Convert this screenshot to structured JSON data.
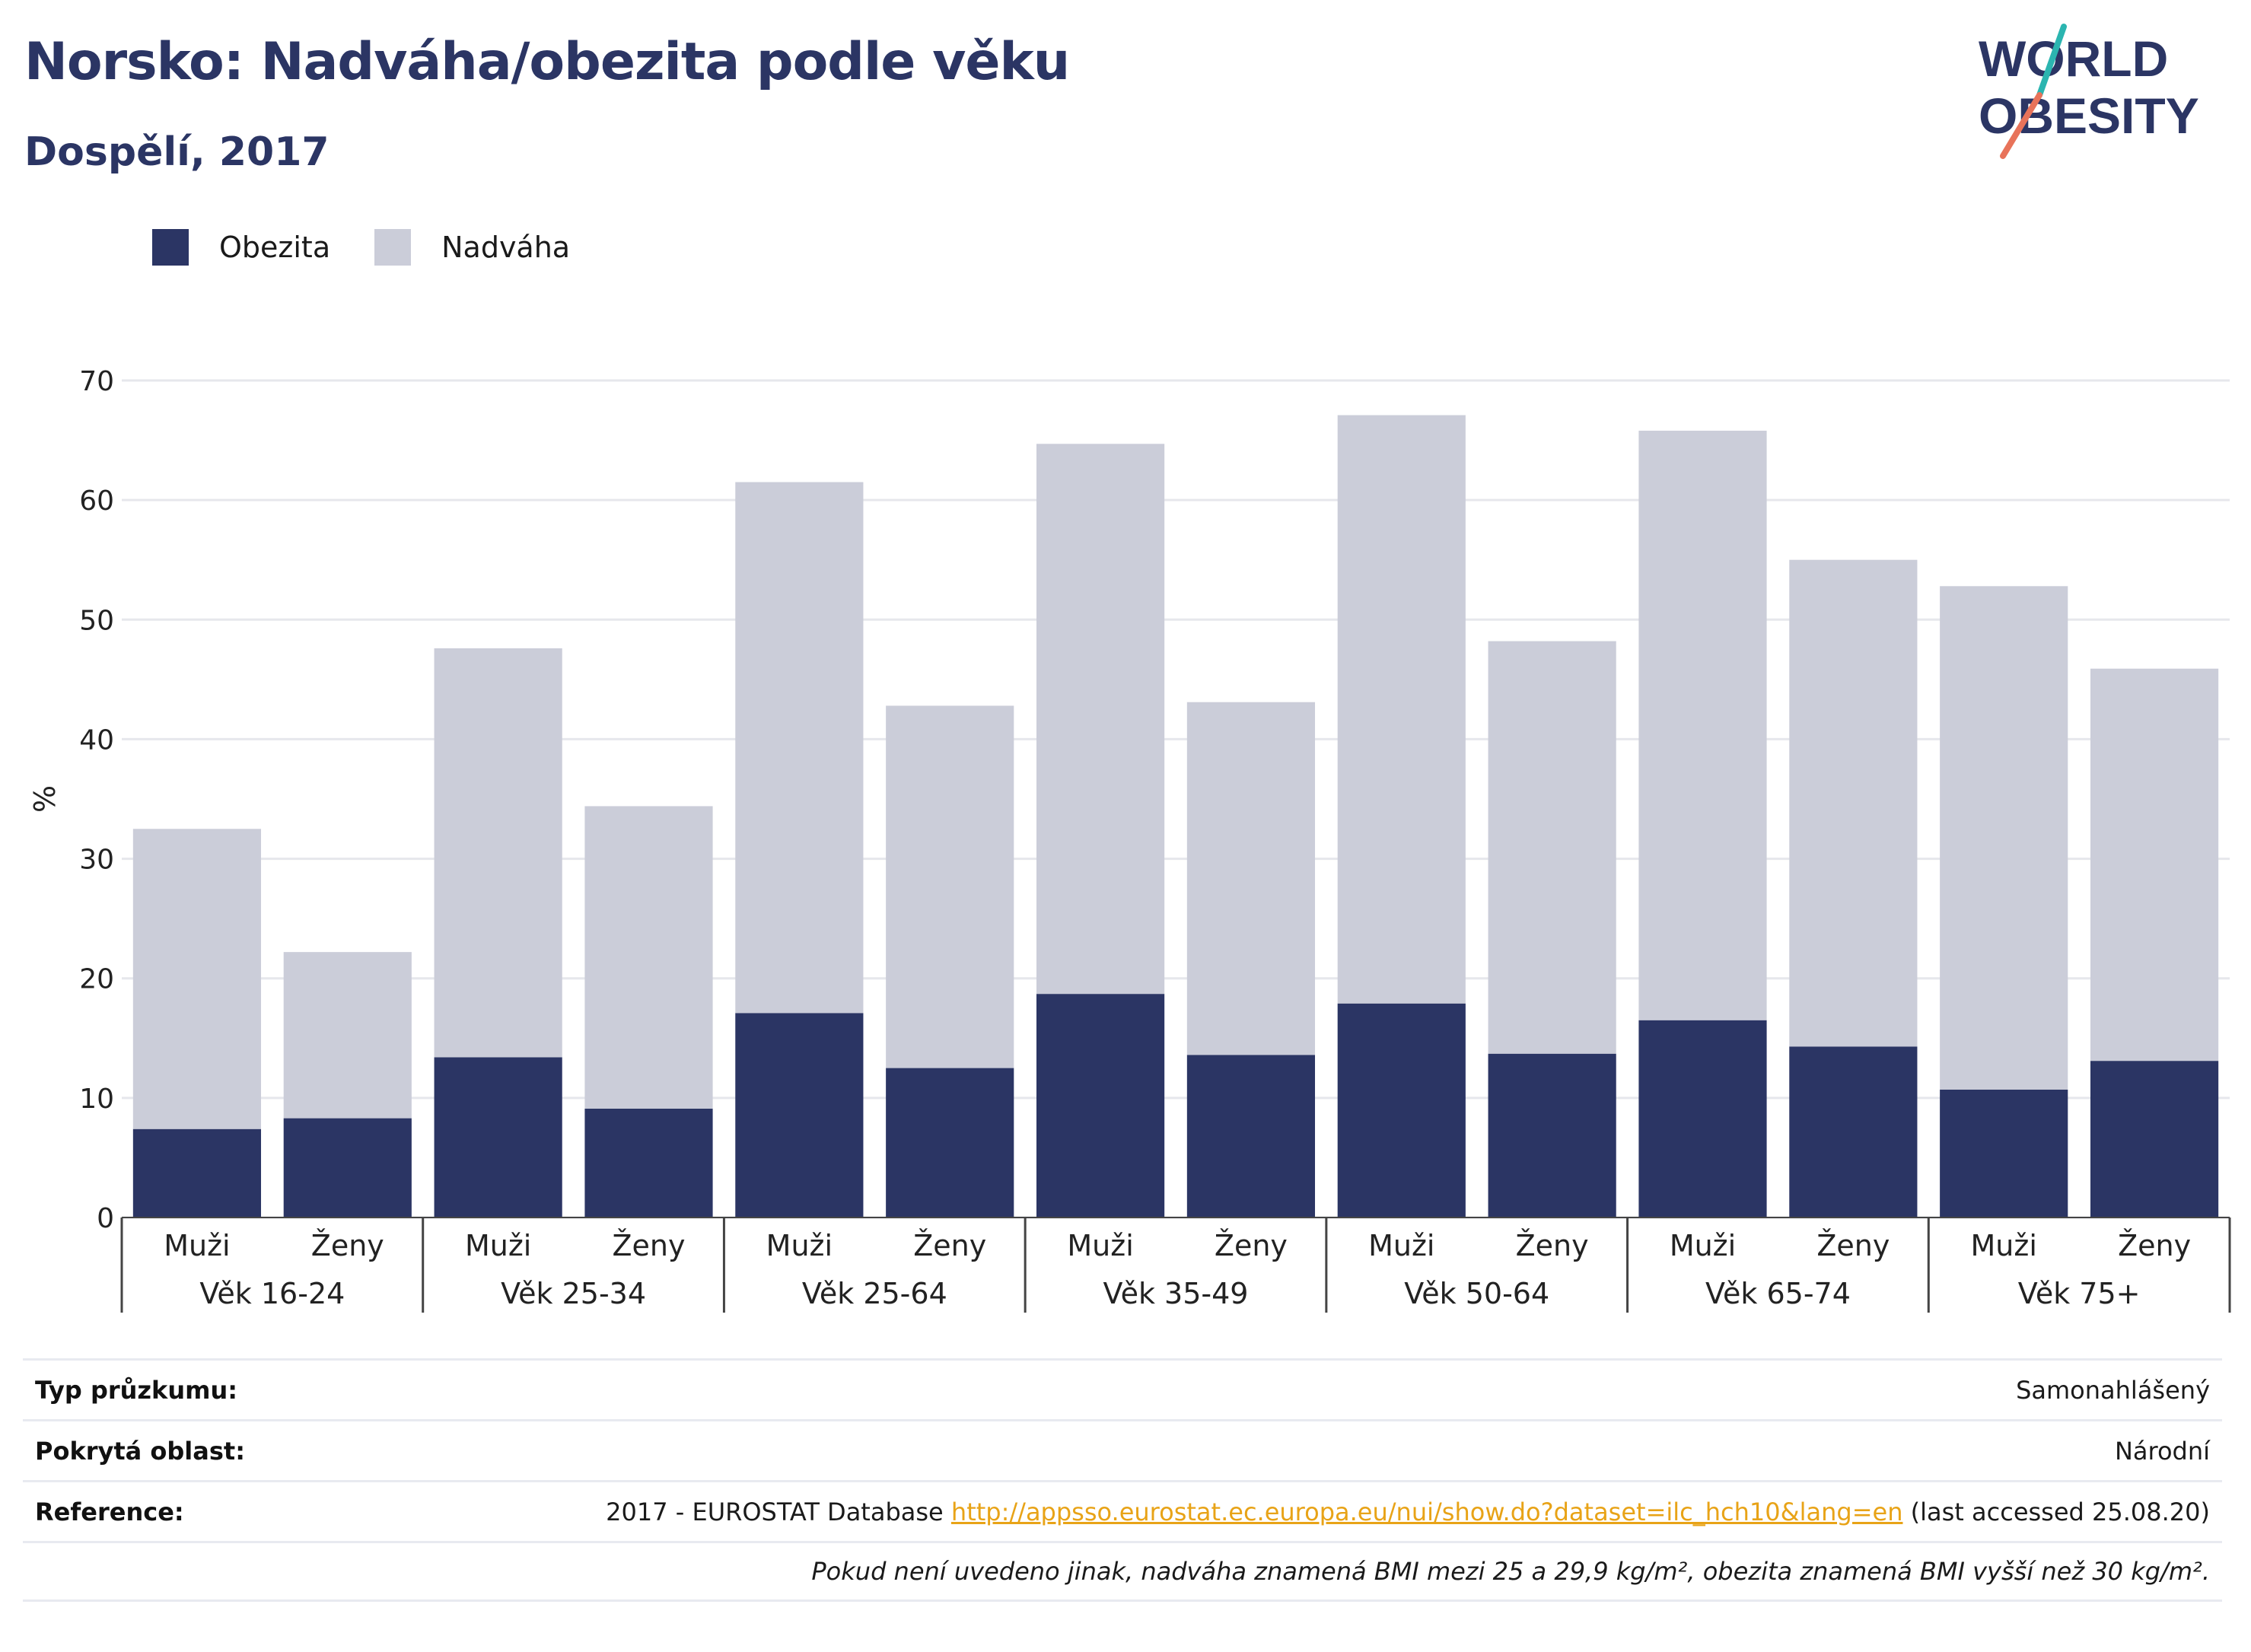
{
  "header": {
    "title": "Norsko: Nadváha/obezita podle věku",
    "subtitle": "Dospělí, 2017"
  },
  "logo": {
    "line1": "WORLD",
    "line2": "OBESITY",
    "colors": {
      "text": "#2b3564",
      "slash_teal": "#2bb5b0",
      "slash_coral": "#e8735a"
    }
  },
  "legend": {
    "items": [
      {
        "label": "Obezita",
        "color": "#2b3564"
      },
      {
        "label": "Nadváha",
        "color": "#cbcdd9"
      }
    ]
  },
  "chart_data": {
    "type": "bar",
    "stacked": true,
    "ylabel": "%",
    "ylim": [
      0,
      70
    ],
    "yticks": [
      0,
      10,
      20,
      30,
      40,
      50,
      60,
      70
    ],
    "grid": true,
    "legend_position": "top-left",
    "groups": [
      "Věk 16-24",
      "Věk 25-34",
      "Věk 25-64",
      "Věk 35-49",
      "Věk 50-64",
      "Věk 65-74",
      "Věk 75+"
    ],
    "sublabels": [
      "Muži",
      "Ženy"
    ],
    "series": [
      {
        "name": "Obezita",
        "color": "#2b3564",
        "values": [
          7.4,
          8.3,
          13.4,
          9.1,
          17.1,
          12.5,
          18.7,
          13.6,
          17.9,
          13.7,
          16.5,
          14.3,
          10.7,
          13.1
        ]
      },
      {
        "name": "Nadváha",
        "color": "#cbcdd9",
        "values": [
          25.1,
          13.9,
          34.2,
          25.3,
          44.4,
          30.3,
          46.0,
          29.5,
          49.2,
          34.5,
          49.3,
          40.7,
          42.1,
          32.8
        ]
      }
    ],
    "totals": [
      32.5,
      22.2,
      47.6,
      34.4,
      61.5,
      42.8,
      64.7,
      43.1,
      67.1,
      48.2,
      65.8,
      55.0,
      52.8,
      45.9
    ]
  },
  "info": {
    "survey_key": "Typ průzkumu:",
    "survey_val": "Samonahlášený",
    "area_key": "Pokrytá oblast:",
    "area_val": "Národní",
    "ref_key": "Reference:",
    "ref_prefix": "2017 - EUROSTAT Database ",
    "ref_link": "http://appsso.eurostat.ec.europa.eu/nui/show.do?dataset=ilc_hch10&lang=en",
    "ref_suffix": " (last accessed 25.08.20)",
    "note": "Pokud není uvedeno jinak, nadváha znamená BMI mezi 25 a 29,9 kg/m², obezita znamená BMI vyšší než 30 kg/m²."
  }
}
